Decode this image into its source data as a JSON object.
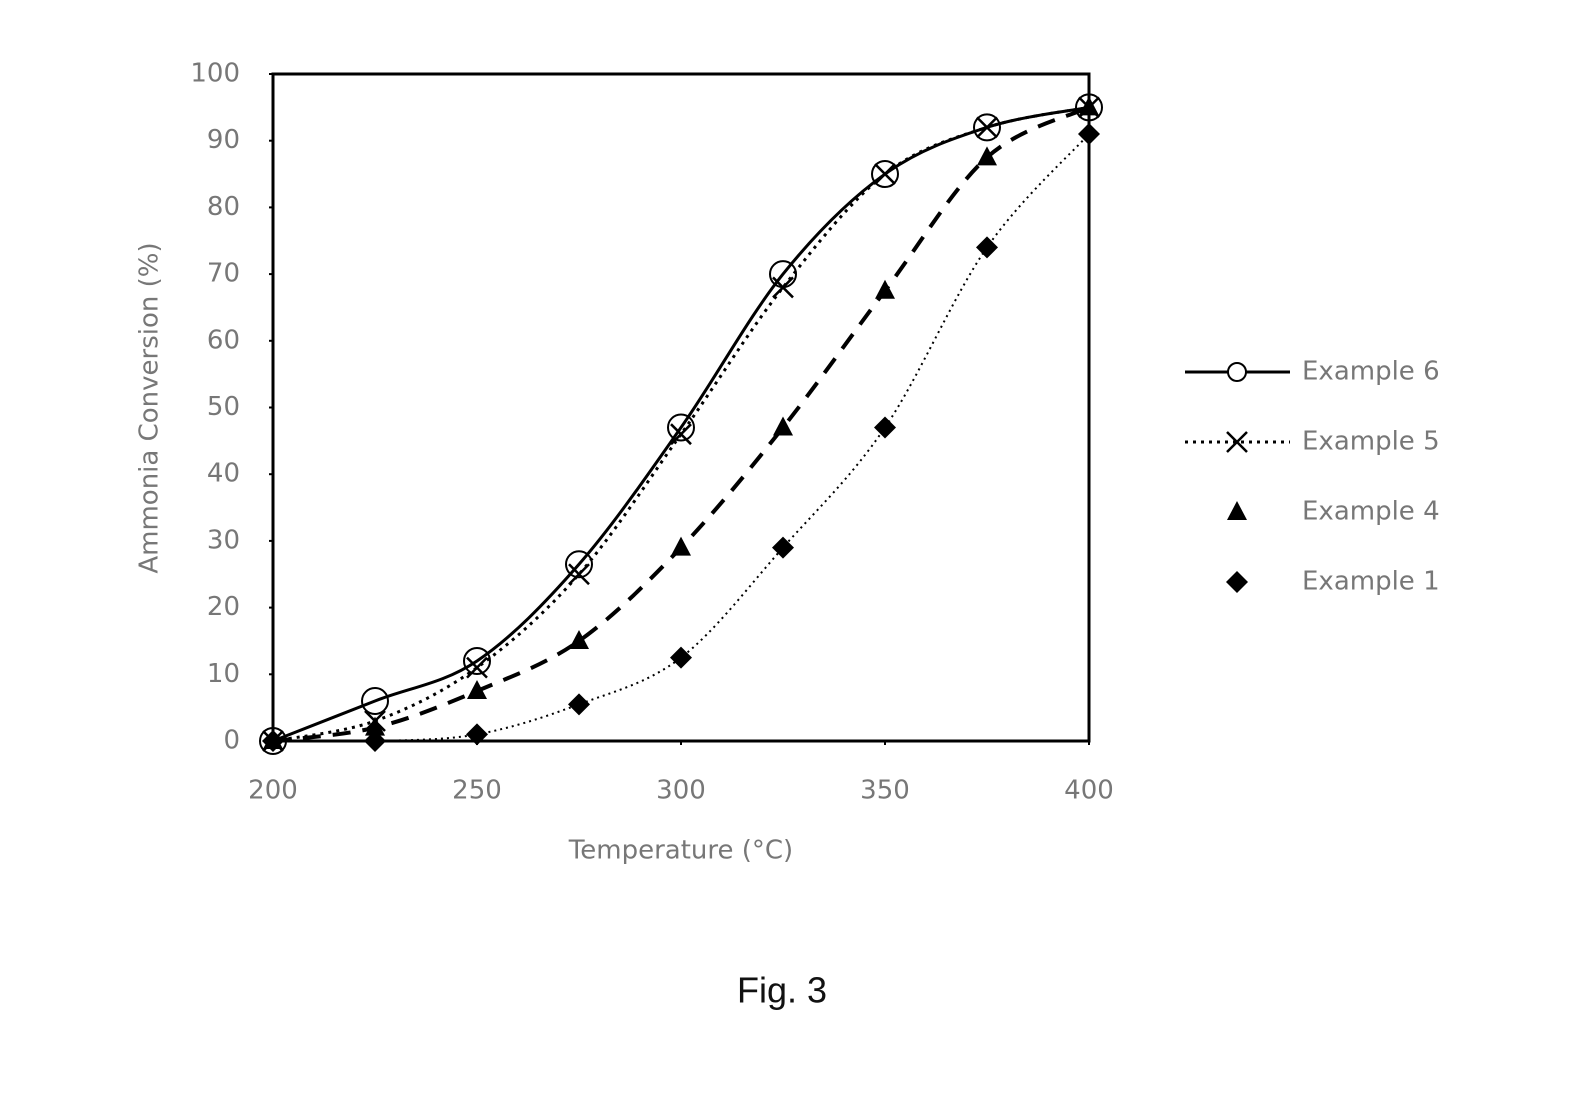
{
  "chart_data": {
    "type": "line",
    "caption": "Fig. 3",
    "x_label": "Temperature (°C)",
    "y_label": "Ammonia Conversion (%)",
    "x": [
      200,
      225,
      250,
      275,
      300,
      325,
      350,
      375,
      400
    ],
    "xlim": [
      200,
      400
    ],
    "xticks": [
      200,
      250,
      300,
      350,
      400
    ],
    "ylim": [
      0,
      100
    ],
    "yticks": [
      0,
      10,
      20,
      30,
      40,
      50,
      60,
      70,
      80,
      90,
      100
    ],
    "legend": "right",
    "smooth": true,
    "series": [
      {
        "name": "Example 6",
        "color": "#000000",
        "marker": "circle",
        "line_style": "solid",
        "legend_line": true,
        "values": [
          0,
          6,
          12,
          26.5,
          47,
          70,
          85,
          92,
          95
        ]
      },
      {
        "name": "Example 5",
        "color": "#000000",
        "marker": "x",
        "line_style": "dotted",
        "legend_line": true,
        "values": [
          0,
          3,
          11,
          25,
          46,
          68,
          85,
          92,
          95
        ]
      },
      {
        "name": "Example 4",
        "color": "#000000",
        "marker": "triangle",
        "line_style": "dashed",
        "legend_line": false,
        "values": [
          0,
          2,
          7.5,
          15,
          29,
          47,
          67.5,
          87.5,
          95
        ]
      },
      {
        "name": "Example 1",
        "color": "#000000",
        "marker": "diamond",
        "line_style": "fine-dotted",
        "legend_line": false,
        "values": [
          0,
          0,
          1,
          5.5,
          12.5,
          29,
          47,
          74,
          91
        ]
      }
    ]
  }
}
